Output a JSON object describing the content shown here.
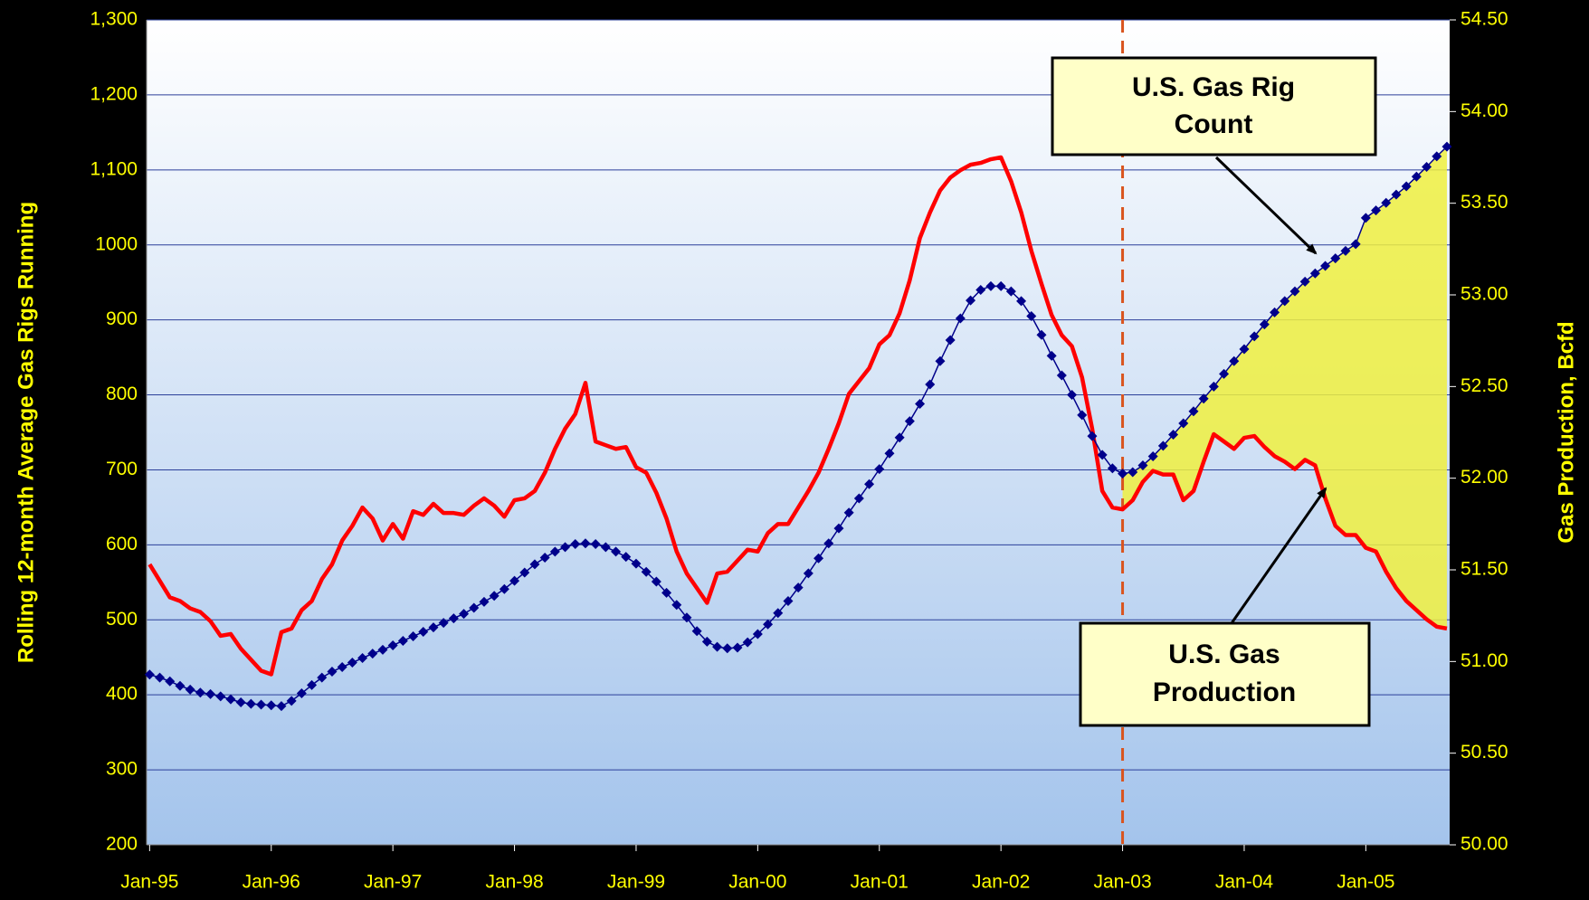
{
  "chart_data": {
    "type": "line",
    "y_label": "Rolling 12-month Average Gas Rigs Running",
    "y2_label": "Gas Production, Bcfd",
    "categories": [
      "Jan-95",
      null,
      null,
      null,
      null,
      null,
      null,
      null,
      null,
      null,
      null,
      null,
      "Jan-96",
      null,
      null,
      null,
      null,
      null,
      null,
      null,
      null,
      null,
      null,
      null,
      "Jan-97",
      null,
      null,
      null,
      null,
      null,
      null,
      null,
      null,
      null,
      null,
      null,
      "Jan-98",
      null,
      null,
      null,
      null,
      null,
      null,
      null,
      null,
      null,
      null,
      null,
      "Jan-99",
      null,
      null,
      null,
      null,
      null,
      null,
      null,
      null,
      null,
      null,
      null,
      "Jan-00",
      null,
      null,
      null,
      null,
      null,
      null,
      null,
      null,
      null,
      null,
      null,
      "Jan-01",
      null,
      null,
      null,
      null,
      null,
      null,
      null,
      null,
      null,
      null,
      null,
      "Jan-02",
      null,
      null,
      null,
      null,
      null,
      null,
      null,
      null,
      null,
      null,
      null,
      "Jan-03",
      null,
      null,
      null,
      null,
      null,
      null,
      null,
      null,
      null,
      null,
      null,
      "Jan-04",
      null,
      null,
      null,
      null,
      null,
      null,
      null,
      null,
      null,
      null,
      null,
      "Jan-05",
      null,
      null,
      null,
      null,
      null,
      null,
      null,
      null
    ],
    "series": [
      {
        "name": "U.S. Gas Rig Count",
        "color": "#00008b",
        "axis": "y",
        "marker": "diamond",
        "values": [
          427,
          423,
          418,
          412,
          407,
          403,
          401,
          398,
          394,
          390,
          388,
          387,
          386,
          385,
          392,
          402,
          413,
          423,
          431,
          437,
          443,
          449,
          455,
          460,
          466,
          472,
          478,
          484,
          490,
          496,
          502,
          508,
          516,
          524,
          532,
          541,
          552,
          563,
          574,
          583,
          591,
          597,
          601,
          602,
          601,
          597,
          591,
          584,
          575,
          564,
          551,
          536,
          520,
          503,
          485,
          471,
          464,
          462,
          463,
          470,
          481,
          494,
          509,
          525,
          543,
          562,
          582,
          602,
          622,
          643,
          662,
          681,
          701,
          722,
          743,
          765,
          788,
          814,
          845,
          873,
          902,
          926,
          940,
          945,
          945,
          938,
          925,
          905,
          880,
          852,
          826,
          800,
          773,
          745,
          720,
          702,
          695,
          697,
          706,
          718,
          732,
          747,
          762,
          778,
          795,
          811,
          828,
          845,
          861,
          878,
          894,
          910,
          925,
          938,
          951,
          962,
          972,
          982,
          992,
          1001,
          1036,
          1046,
          1056,
          1067,
          1078,
          1091,
          1104,
          1118,
          1131
        ]
      },
      {
        "name": "U.S. Gas Production",
        "color": "#ff0000",
        "axis": "y2",
        "values": [
          51.53,
          51.44,
          51.35,
          51.33,
          51.29,
          51.27,
          51.22,
          51.14,
          51.15,
          51.07,
          51.01,
          50.95,
          50.93,
          51.16,
          51.18,
          51.28,
          51.33,
          51.45,
          51.53,
          51.66,
          51.74,
          51.84,
          51.78,
          51.66,
          51.75,
          51.67,
          51.82,
          51.8,
          51.86,
          51.81,
          51.81,
          51.8,
          51.85,
          51.89,
          51.85,
          51.79,
          51.88,
          51.89,
          51.93,
          52.03,
          52.16,
          52.27,
          52.35,
          52.52,
          52.2,
          52.18,
          52.16,
          52.17,
          52.06,
          52.03,
          51.92,
          51.78,
          51.6,
          51.48,
          51.4,
          51.32,
          51.48,
          51.49,
          51.55,
          51.61,
          51.6,
          51.7,
          51.75,
          51.75,
          51.84,
          51.93,
          52.03,
          52.16,
          52.3,
          52.46,
          52.53,
          52.6,
          52.73,
          52.78,
          52.9,
          53.08,
          53.31,
          53.45,
          53.57,
          53.64,
          53.68,
          53.71,
          53.72,
          53.74,
          53.75,
          53.62,
          53.45,
          53.24,
          53.06,
          52.89,
          52.78,
          52.72,
          52.55,
          52.27,
          51.93,
          51.84,
          51.83,
          51.88,
          51.98,
          52.04,
          52.02,
          52.02,
          51.88,
          51.93,
          52.09,
          52.24,
          52.2,
          52.16,
          52.22,
          52.23,
          52.17,
          52.12,
          52.09,
          52.05,
          52.1,
          52.07,
          51.89,
          51.74,
          51.69,
          51.69,
          51.62,
          51.6,
          51.49,
          51.4,
          51.33,
          51.28,
          51.23,
          51.19,
          51.18
        ]
      }
    ],
    "ylim": [
      200,
      1300
    ],
    "yticks": [
      200,
      300,
      400,
      500,
      600,
      700,
      800,
      900,
      1000,
      {
        "value": 1100,
        "label": "1,100"
      },
      {
        "value": 1200,
        "label": "1,200"
      },
      {
        "value": 1300,
        "label": "1,300"
      }
    ],
    "y2lim": [
      50,
      54.5
    ],
    "y2ticks": [
      {
        "value": 50,
        "label": "50.00"
      },
      {
        "value": 50.5,
        "label": "50.50"
      },
      {
        "value": 51,
        "label": "51.00"
      },
      {
        "value": 51.5,
        "label": "51.50"
      },
      {
        "value": 52,
        "label": "52.00"
      },
      {
        "value": 52.5,
        "label": "52.50"
      },
      {
        "value": 53,
        "label": "53.00"
      },
      {
        "value": 53.5,
        "label": "53.50"
      },
      {
        "value": 54,
        "label": "54.00"
      },
      {
        "value": 54.5,
        "label": "54.50"
      }
    ],
    "grid": true,
    "reference_line": {
      "at": "Jan-03",
      "color": "#d9541e"
    },
    "shade_between": {
      "from": "Jan-03",
      "color": "#f0f040"
    },
    "annotations": [
      {
        "lines": [
          "U.S. Gas Rig",
          "Count"
        ]
      },
      {
        "lines": [
          "U.S. Gas",
          "Production"
        ]
      }
    ]
  }
}
